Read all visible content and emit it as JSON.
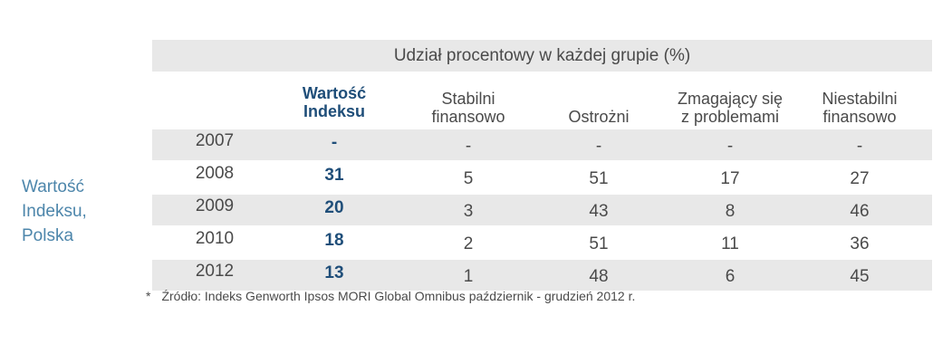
{
  "side_label": [
    "Wartość",
    "Indeksu,",
    "Polska"
  ],
  "table": {
    "caption": "Udział procentowy w każdej grupie (%)",
    "columns": [
      {
        "lines": [
          "Wartość",
          "Indeksu"
        ]
      },
      {
        "lines": [
          "Stabilni",
          "finansowo"
        ]
      },
      {
        "lines": [
          "Ostrożni"
        ]
      },
      {
        "lines": [
          "Zmagający się",
          "z problemami"
        ]
      },
      {
        "lines": [
          "Niestabilni",
          "finansowo"
        ]
      }
    ],
    "rows": [
      {
        "year": "2007",
        "values": [
          "-",
          "-",
          "-",
          "-",
          "-"
        ]
      },
      {
        "year": "2008",
        "values": [
          "31",
          "5",
          "51",
          "17",
          "27"
        ]
      },
      {
        "year": "2009",
        "values": [
          "20",
          "3",
          "43",
          "8",
          "46"
        ]
      },
      {
        "year": "2010",
        "values": [
          "18",
          "2",
          "51",
          "11",
          "36"
        ]
      },
      {
        "year": "2012",
        "values": [
          "13",
          "1",
          "48",
          "6",
          "45"
        ]
      }
    ]
  },
  "footnote": {
    "star": "*",
    "text": "Źródło: Indeks Genworth Ipsos MORI Global Omnibus październik - grudzień 2012 r."
  }
}
